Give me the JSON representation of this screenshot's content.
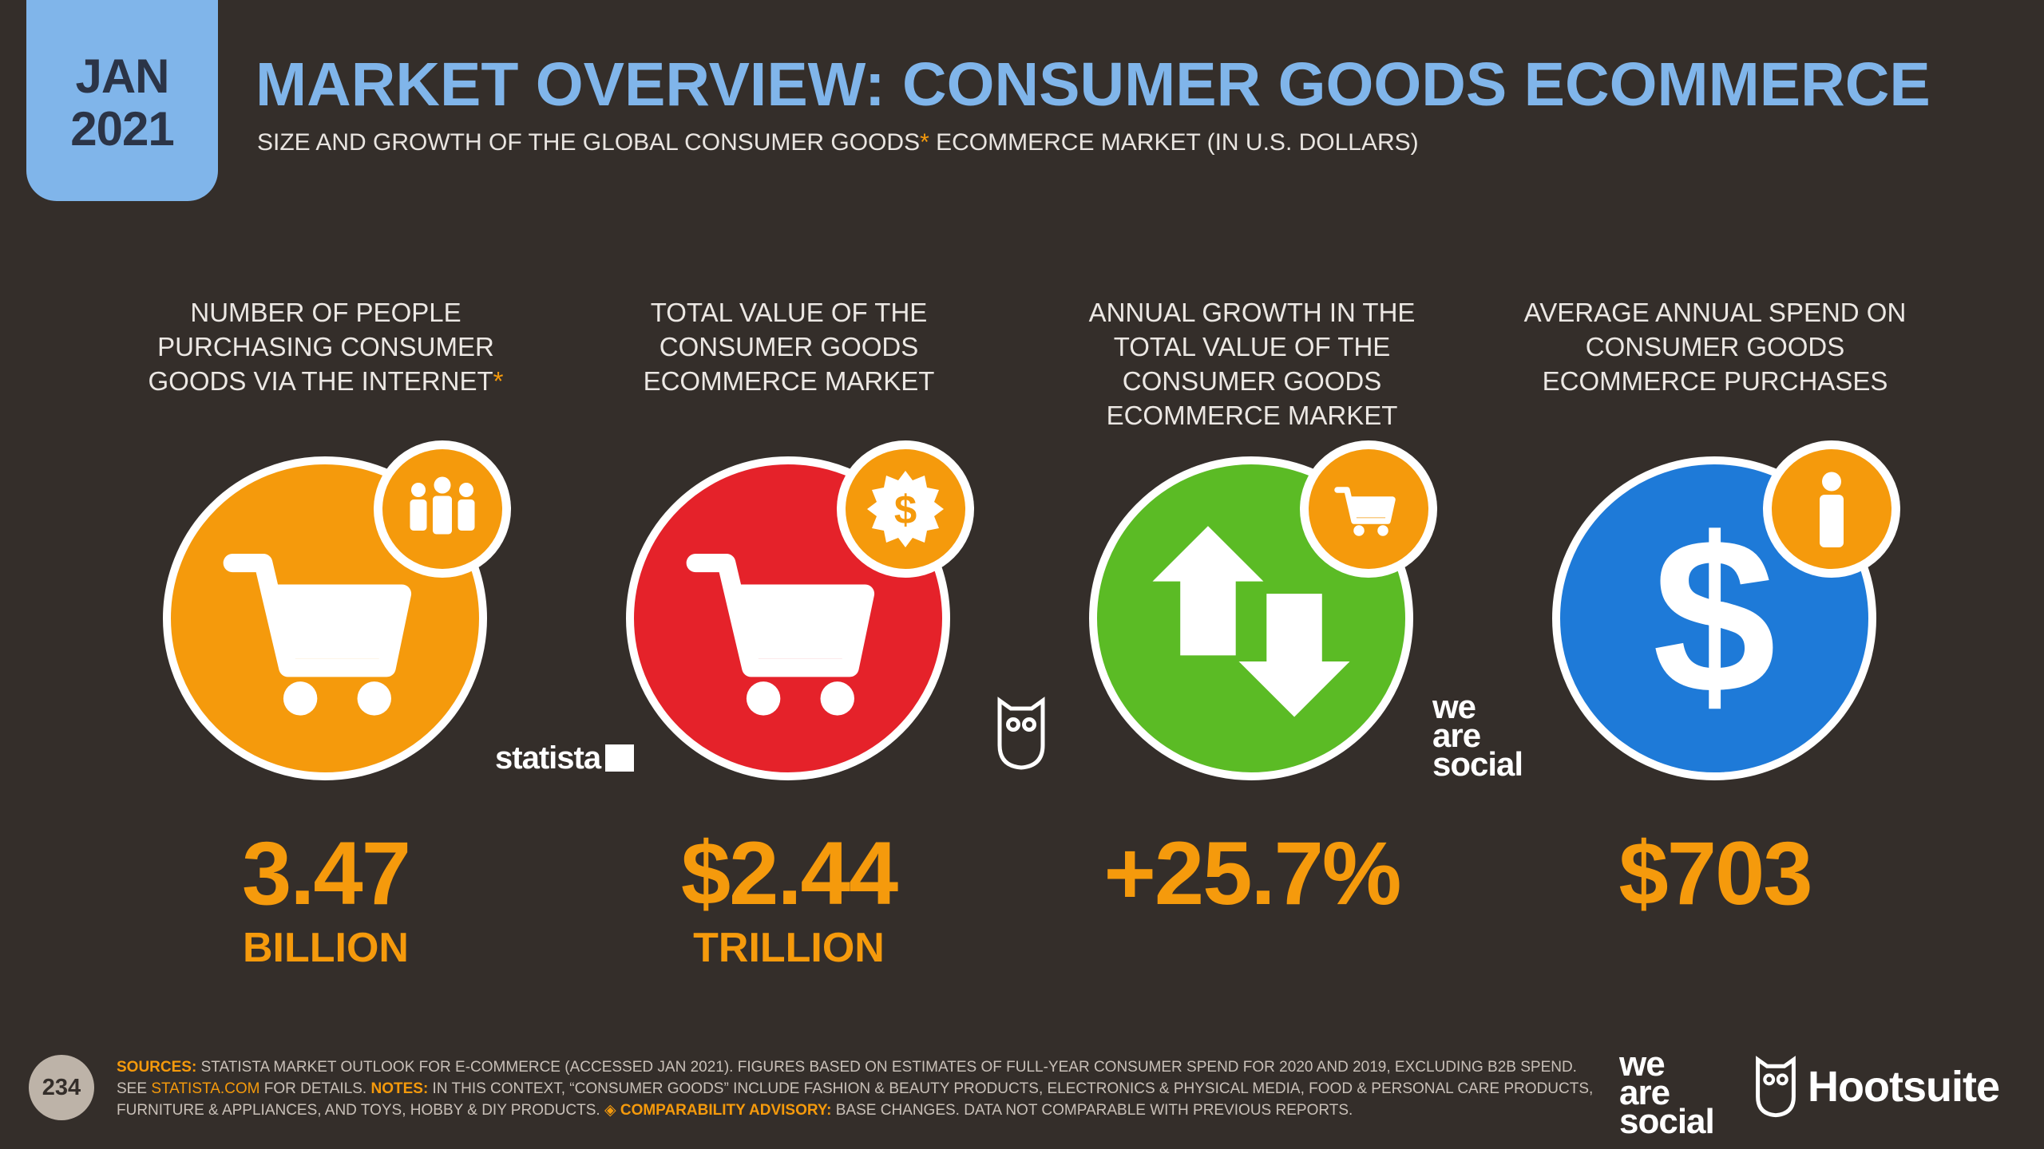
{
  "badge": {
    "month": "JAN",
    "year": "2021"
  },
  "header": {
    "title": "MARKET OVERVIEW: CONSUMER GOODS ECOMMERCE",
    "subtitle_pre": "SIZE AND GROWTH OF THE GLOBAL CONSUMER GOODS",
    "subtitle_ast": "*",
    "subtitle_post": " ECOMMERCE MARKET (IN U.S. DOLLARS)"
  },
  "colors": {
    "accent": "#f59a0c",
    "blue": "#80b5ea",
    "orange": "#f59a0c",
    "red": "#e5222a",
    "green": "#5bbb25",
    "dark_blue": "#1e7ad8",
    "background": "#342e2a"
  },
  "stats": [
    {
      "label": "NUMBER OF PEOPLE PURCHASING CONSUMER GOODS VIA THE INTERNET",
      "label_ast": "*",
      "value": "3.47",
      "unit": "BILLION",
      "icon": "shopping-cart-icon",
      "badge_icon": "people-group-icon",
      "circle_color": "#f59a0c"
    },
    {
      "label": "TOTAL VALUE OF THE CONSUMER GOODS ECOMMERCE MARKET",
      "label_ast": "",
      "value": "$2.44",
      "unit": "TRILLION",
      "icon": "shopping-cart-icon",
      "badge_icon": "dollar-seal-icon",
      "circle_color": "#e5222a"
    },
    {
      "label": "ANNUAL GROWTH IN THE TOTAL VALUE OF THE CONSUMER GOODS ECOMMERCE MARKET",
      "label_ast": "",
      "value": "+25.7%",
      "unit": "",
      "icon": "up-down-arrows-icon",
      "badge_icon": "shopping-cart-icon",
      "circle_color": "#5bbb25"
    },
    {
      "label": "AVERAGE ANNUAL SPEND ON CONSUMER GOODS ECOMMERCE PURCHASES",
      "label_ast": "",
      "value": "$703",
      "unit": "",
      "icon": "dollar-sign-icon",
      "badge_icon": "person-icon",
      "circle_color": "#1e7ad8"
    }
  ],
  "logos": {
    "statista": "statista",
    "we_are_social": [
      "we",
      "are",
      "social"
    ],
    "hootsuite": "Hootsuite"
  },
  "footer": {
    "page_number": "234",
    "sources_label": "SOURCES:",
    "sources_text": " STATISTA MARKET OUTLOOK FOR E-COMMERCE (ACCESSED JAN 2021). FIGURES BASED ON ESTIMATES OF FULL-YEAR CONSUMER SPEND FOR 2020 AND 2019, EXCLUDING B2B SPEND. SEE ",
    "link": "STATISTA.COM",
    "after_link": " FOR DETAILS. ",
    "notes_label": "NOTES:",
    "notes_text": " IN THIS CONTEXT, “CONSUMER GOODS” INCLUDE FASHION & BEAUTY PRODUCTS, ELECTRONICS & PHYSICAL MEDIA, FOOD & PERSONAL CARE PRODUCTS, FURNITURE & APPLIANCES, AND TOYS, HOBBY & DIY PRODUCTS. ",
    "advisory_label": "◈ COMPARABILITY ADVISORY:",
    "advisory_text": " BASE CHANGES. DATA NOT COMPARABLE WITH PREVIOUS REPORTS."
  }
}
